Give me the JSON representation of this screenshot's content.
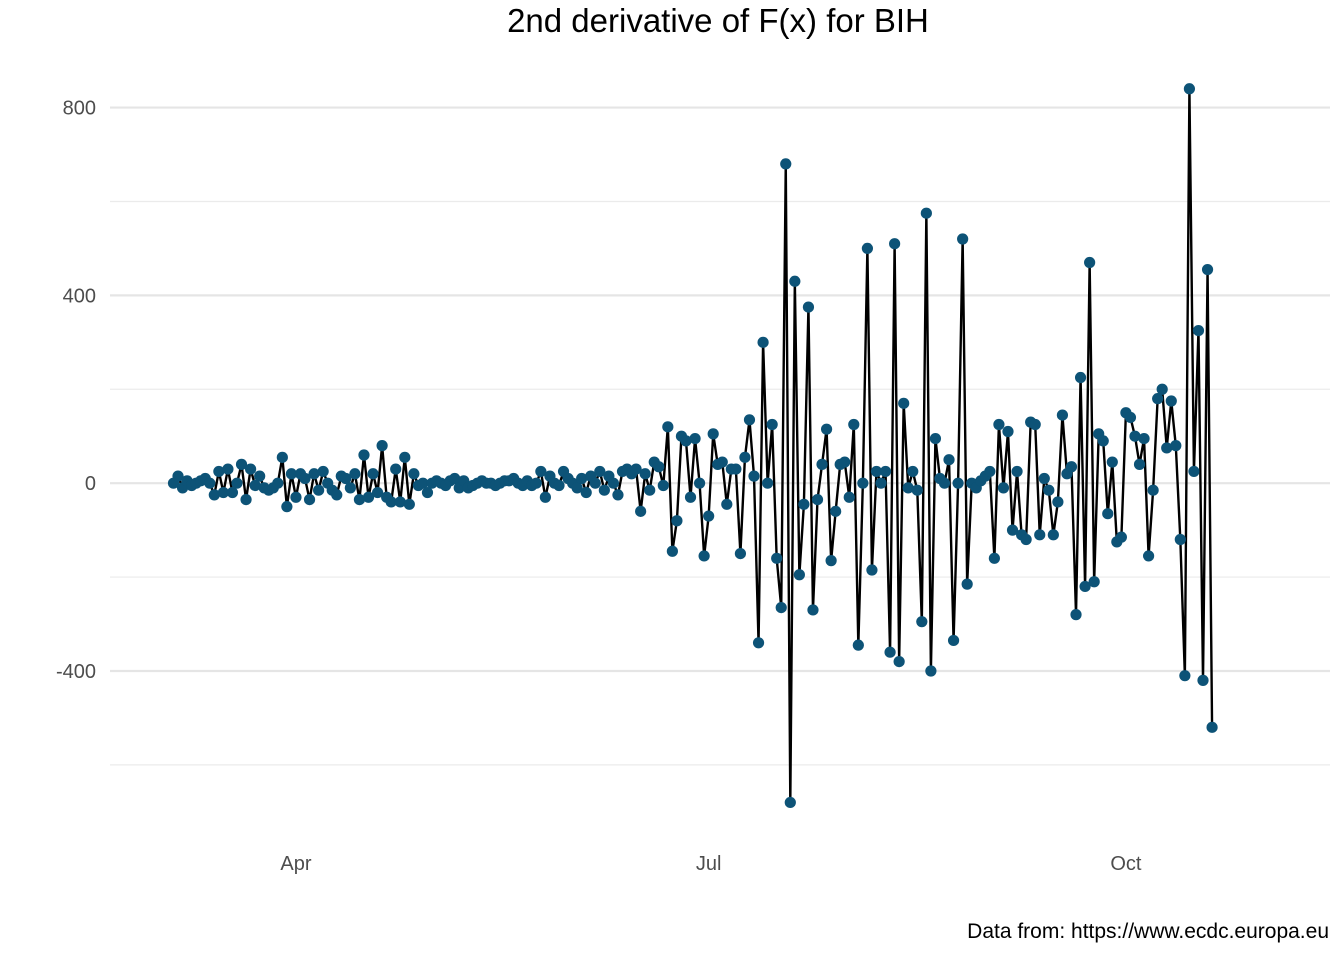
{
  "title": "2nd derivative of F(x) for BIH",
  "caption": "Data from: https://www.ecdc.europa.eu",
  "chart_data": {
    "type": "line",
    "title": "2nd derivative of F(x) for BIH",
    "xlabel": "",
    "ylabel": "",
    "x_start": "2020-03-05",
    "x_step_days": 1,
    "xlim": [
      "2020-02-20",
      "2020-11-15"
    ],
    "ylim": [
      -760,
      880
    ],
    "y_ticks": [
      -400,
      0,
      400,
      800
    ],
    "x_ticks": [
      {
        "date": "2020-04-01",
        "label": "Apr"
      },
      {
        "date": "2020-07-01",
        "label": "Jul"
      },
      {
        "date": "2020-10-01",
        "label": "Oct"
      }
    ],
    "grid": true,
    "line_color": "#000000",
    "point_color": "#0d5377",
    "series": [
      {
        "values": [
          0,
          15,
          -10,
          5,
          -5,
          0,
          5,
          10,
          0,
          -25,
          25,
          -20,
          30,
          -20,
          0,
          40,
          -35,
          30,
          -5,
          15,
          -10,
          -15,
          -10,
          0,
          55,
          -50,
          20,
          -30,
          20,
          10,
          -35,
          20,
          -15,
          25,
          0,
          -15,
          -25,
          15,
          10,
          -10,
          20,
          -35,
          60,
          -30,
          20,
          -20,
          80,
          -30,
          -40,
          30,
          -40,
          55,
          -45,
          20,
          -5,
          0,
          -20,
          0,
          5,
          0,
          -5,
          5,
          10,
          -10,
          5,
          -10,
          -5,
          0,
          5,
          0,
          0,
          -5,
          0,
          5,
          5,
          10,
          0,
          -5,
          5,
          -5,
          0,
          25,
          -30,
          15,
          0,
          -5,
          25,
          10,
          0,
          -10,
          10,
          -20,
          15,
          0,
          25,
          -15,
          15,
          0,
          -25,
          25,
          30,
          20,
          30,
          -60,
          20,
          -15,
          45,
          35,
          -5,
          120,
          -145,
          -80,
          100,
          90,
          -30,
          95,
          0,
          -155,
          -70,
          105,
          40,
          45,
          -45,
          30,
          30,
          -150,
          55,
          135,
          15,
          -340,
          300,
          0,
          125,
          -160,
          -265,
          680,
          -680,
          430,
          -195,
          -45,
          375,
          -270,
          -35,
          40,
          115,
          -165,
          -60,
          40,
          45,
          -30,
          125,
          -345,
          0,
          500,
          -185,
          25,
          0,
          25,
          -360,
          510,
          -380,
          170,
          -10,
          25,
          -15,
          -295,
          575,
          -400,
          95,
          10,
          0,
          50,
          -335,
          0,
          520,
          -215,
          0,
          -10,
          5,
          15,
          25,
          -160,
          125,
          -10,
          110,
          -100,
          25,
          -110,
          -120,
          130,
          125,
          -110,
          10,
          -15,
          -110,
          -40,
          145,
          20,
          35,
          -280,
          225,
          -220,
          470,
          -210,
          105,
          90,
          -65,
          45,
          -125,
          -115,
          150,
          140,
          100,
          40,
          95,
          -155,
          -15,
          180,
          200,
          75,
          175,
          80,
          -120,
          -410,
          840,
          25,
          325,
          -420,
          455,
          -520
        ]
      }
    ]
  }
}
